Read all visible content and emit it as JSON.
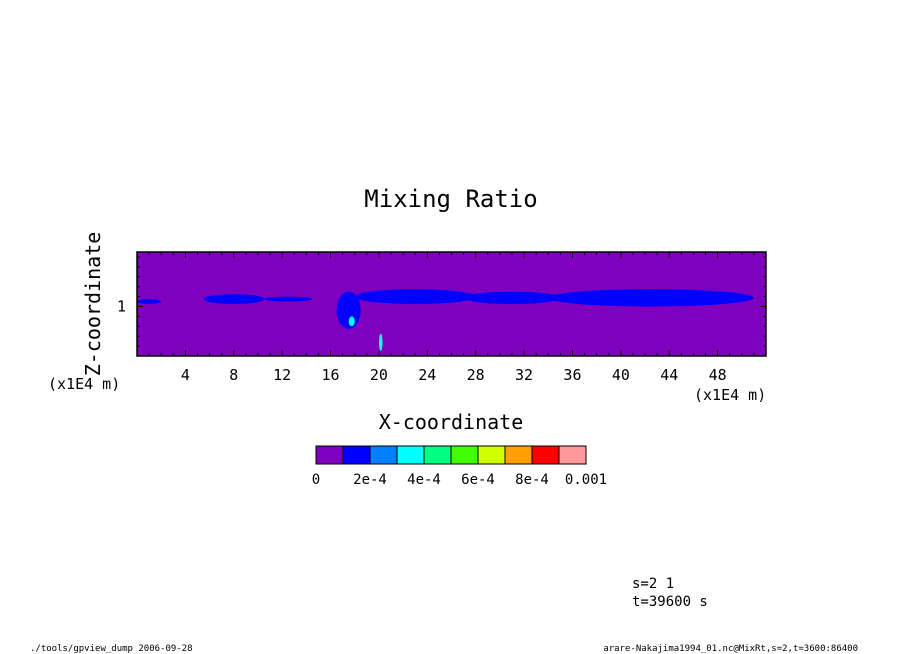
{
  "chart_data": {
    "type": "heatmap",
    "title": "Mixing Ratio",
    "xlabel": "X-coordinate",
    "ylabel": "Z-coordinate",
    "x_unit": "(x1E4 m)",
    "y_unit": "(x1E4 m)",
    "xlim": [
      0,
      52
    ],
    "ylim": [
      0,
      2.1
    ],
    "x_ticks": [
      4,
      8,
      12,
      16,
      20,
      24,
      28,
      32,
      36,
      40,
      44,
      48
    ],
    "y_ticks": [
      1
    ],
    "background_value": 0,
    "features": [
      {
        "x": [
          0,
          2
        ],
        "z": [
          1.05,
          1.15
        ],
        "value": 0.0001
      },
      {
        "x": [
          5.5,
          10.5
        ],
        "z": [
          1.05,
          1.25
        ],
        "value": 0.0001
      },
      {
        "x": [
          10.5,
          14.5
        ],
        "z": [
          1.1,
          1.2
        ],
        "value": 0.0001
      },
      {
        "x": [
          16.5,
          18.5
        ],
        "z": [
          0.55,
          1.3
        ],
        "value": 0.0001
      },
      {
        "x": [
          17.5,
          18
        ],
        "z": [
          0.6,
          0.8
        ],
        "value": 0.0003
      },
      {
        "x": [
          20,
          20.3
        ],
        "z": [
          0.1,
          0.45
        ],
        "value": 0.0003
      },
      {
        "x": [
          18,
          28
        ],
        "z": [
          1.05,
          1.35
        ],
        "value": 0.0001
      },
      {
        "x": [
          27,
          35
        ],
        "z": [
          1.05,
          1.3
        ],
        "value": 0.0001
      },
      {
        "x": [
          34,
          51
        ],
        "z": [
          1.0,
          1.35
        ],
        "value": 0.0001
      }
    ],
    "colorbar": {
      "colors": [
        "#7f00bf",
        "#0000ff",
        "#0080ff",
        "#00ffff",
        "#00ff80",
        "#40ff00",
        "#d4ff00",
        "#ff9f00",
        "#ff0000",
        "#ff9999"
      ],
      "labels": [
        "0",
        "2e-4",
        "4e-4",
        "6e-4",
        "8e-4",
        "0.001"
      ],
      "range": [
        0,
        0.001
      ]
    }
  },
  "annotations": {
    "slice": "s=2 1",
    "time": "t=39600 s"
  },
  "footer": {
    "left": "./tools/gpview_dump  2006-09-28",
    "right": "arare-Nakajima1994_01.nc@MixRt,s=2,t=3600:86400"
  }
}
